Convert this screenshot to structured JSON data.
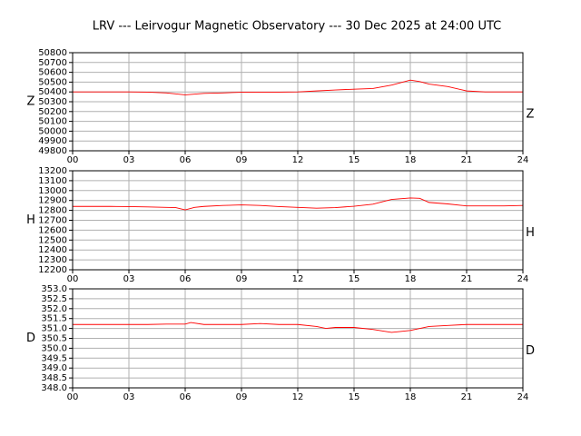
{
  "chart_data": [
    {
      "type": "line",
      "title": "LRV --- Leirvogur Magnetic Observatory --- 30 Dec 2025 at 24:00 UTC",
      "ylabel": "Z",
      "right_label": "Z",
      "x": [
        0,
        1,
        2,
        3,
        4,
        5,
        6,
        7,
        8,
        9,
        10,
        11,
        12,
        13,
        14,
        15,
        16,
        17,
        18,
        18.5,
        19,
        20,
        21,
        22,
        23,
        24
      ],
      "series": [
        {
          "name": "Z",
          "color": "#ff0000",
          "values": [
            50400,
            50400,
            50400,
            50400,
            50398,
            50390,
            50370,
            50385,
            50390,
            50397,
            50398,
            50398,
            50400,
            50410,
            50420,
            50428,
            50435,
            50470,
            50520,
            50505,
            50480,
            50455,
            50410,
            50400,
            50400,
            50400
          ]
        }
      ],
      "xlim": [
        0,
        24
      ],
      "xticks": [
        {
          "value": 0,
          "label": "00"
        },
        {
          "value": 3,
          "label": "03"
        },
        {
          "value": 6,
          "label": "06"
        },
        {
          "value": 9,
          "label": "09"
        },
        {
          "value": 12,
          "label": "12"
        },
        {
          "value": 15,
          "label": "15"
        },
        {
          "value": 18,
          "label": "18"
        },
        {
          "value": 21,
          "label": "21"
        },
        {
          "value": 24,
          "label": "24"
        }
      ],
      "ylim": [
        49800,
        50800
      ],
      "yticks": [
        49800,
        49900,
        50000,
        50100,
        50200,
        50300,
        50400,
        50500,
        50600,
        50700,
        50800
      ],
      "grid": true
    },
    {
      "type": "line",
      "ylabel": "H",
      "right_label": "H",
      "x": [
        0,
        1,
        2,
        3,
        4,
        5,
        5.5,
        6,
        6.5,
        7,
        8,
        9,
        10,
        11,
        12,
        13,
        14,
        15,
        16,
        17,
        18,
        18.5,
        19,
        20,
        21,
        22,
        23,
        24
      ],
      "series": [
        {
          "name": "H",
          "color": "#ff0000",
          "values": [
            12840,
            12840,
            12840,
            12838,
            12835,
            12830,
            12828,
            12805,
            12830,
            12840,
            12850,
            12855,
            12850,
            12838,
            12830,
            12822,
            12828,
            12842,
            12862,
            12910,
            12925,
            12922,
            12880,
            12865,
            12845,
            12845,
            12845,
            12850
          ]
        }
      ],
      "xlim": [
        0,
        24
      ],
      "xticks": [
        {
          "value": 0,
          "label": "00"
        },
        {
          "value": 3,
          "label": "03"
        },
        {
          "value": 6,
          "label": "06"
        },
        {
          "value": 9,
          "label": "09"
        },
        {
          "value": 12,
          "label": "12"
        },
        {
          "value": 15,
          "label": "15"
        },
        {
          "value": 18,
          "label": "18"
        },
        {
          "value": 21,
          "label": "21"
        },
        {
          "value": 24,
          "label": "24"
        }
      ],
      "ylim": [
        12200,
        13200
      ],
      "yticks": [
        12200,
        12300,
        12400,
        12500,
        12600,
        12700,
        12800,
        12900,
        13000,
        13100,
        13200
      ],
      "grid": true
    },
    {
      "type": "line",
      "ylabel": "D",
      "right_label": "D",
      "x": [
        0,
        1,
        2,
        3,
        4,
        5,
        6,
        6.3,
        7,
        8,
        9,
        10,
        11,
        12,
        13,
        13.5,
        14,
        15,
        16,
        17,
        18,
        19,
        20,
        21,
        22,
        23,
        24
      ],
      "series": [
        {
          "name": "D",
          "color": "#ff0000",
          "values": [
            351.2,
            351.2,
            351.2,
            351.2,
            351.2,
            351.22,
            351.22,
            351.3,
            351.2,
            351.2,
            351.2,
            351.25,
            351.2,
            351.2,
            351.1,
            351.0,
            351.05,
            351.05,
            350.95,
            350.8,
            350.9,
            351.1,
            351.15,
            351.2,
            351.2,
            351.2,
            351.2
          ]
        }
      ],
      "xlim": [
        0,
        24
      ],
      "xticks": [
        {
          "value": 0,
          "label": "00"
        },
        {
          "value": 3,
          "label": "03"
        },
        {
          "value": 6,
          "label": "06"
        },
        {
          "value": 9,
          "label": "09"
        },
        {
          "value": 12,
          "label": "12"
        },
        {
          "value": 15,
          "label": "15"
        },
        {
          "value": 18,
          "label": "18"
        },
        {
          "value": 21,
          "label": "21"
        },
        {
          "value": 24,
          "label": "24"
        }
      ],
      "ylim": [
        348,
        353
      ],
      "yticks": [
        {
          "value": 348,
          "label": "348.0"
        },
        {
          "value": 348.5,
          "label": "348.5"
        },
        {
          "value": 349,
          "label": "349.0"
        },
        {
          "value": 349.5,
          "label": "349.5"
        },
        {
          "value": 350,
          "label": "350.0"
        },
        {
          "value": 350.5,
          "label": "350.5"
        },
        {
          "value": 351,
          "label": "351.0"
        },
        {
          "value": 351.5,
          "label": "351.5"
        },
        {
          "value": 352,
          "label": "352.0"
        },
        {
          "value": 352.5,
          "label": "352.5"
        },
        {
          "value": 353,
          "label": "353.0"
        }
      ],
      "grid": true
    }
  ]
}
